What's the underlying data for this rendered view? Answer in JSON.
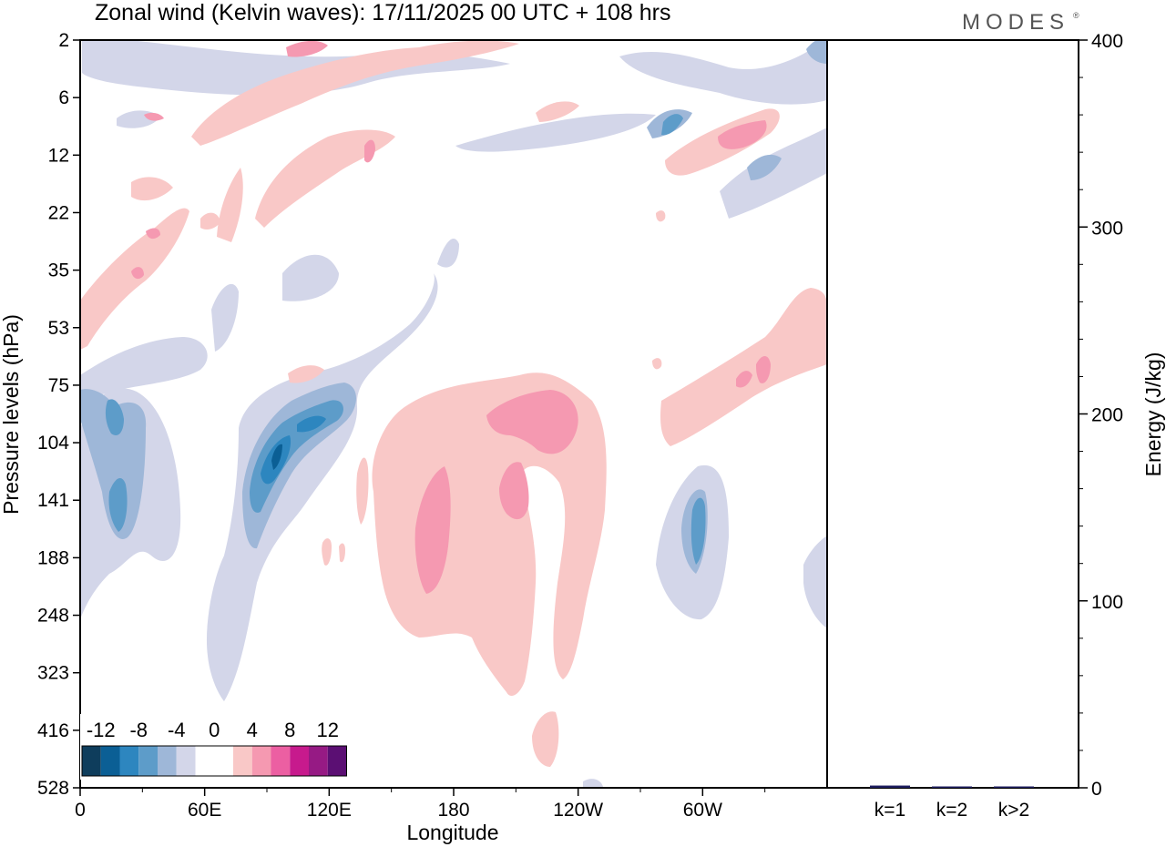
{
  "header": {
    "title": "Zonal wind (Kelvin waves):  17/11/2025  00 UTC  + 108 hrs",
    "brand": "MODES"
  },
  "chart_data": [
    {
      "type": "heatmap",
      "title": "Zonal wind (Kelvin waves):  17/11/2025  00 UTC  + 108 hrs",
      "xlabel": "Longitude",
      "ylabel": "Pressure levels (hPa)",
      "xlim": [
        0,
        360
      ],
      "x_ticks": [
        {
          "label": "0",
          "lon": 0
        },
        {
          "label": "60E",
          "lon": 60
        },
        {
          "label": "120E",
          "lon": 120
        },
        {
          "label": "180",
          "lon": 180
        },
        {
          "label": "120W",
          "lon": 240
        },
        {
          "label": "60W",
          "lon": 300
        }
      ],
      "y_levels": [
        "2",
        "6",
        "12",
        "22",
        "35",
        "53",
        "75",
        "104",
        "141",
        "188",
        "248",
        "323",
        "416",
        "528"
      ],
      "colorbar": {
        "labels": [
          "-12",
          "-8",
          "-4",
          "0",
          "4",
          "8",
          "12"
        ],
        "colors": [
          "#0e3d5c",
          "#0b5f95",
          "#2d86bf",
          "#5d9cc9",
          "#9eb7d8",
          "#d3d6e9",
          "#ffffff",
          "#ffffff",
          "#f9c8c7",
          "#f599b1",
          "#ec5fa2",
          "#c71a8d",
          "#961a84",
          "#5b0f73"
        ]
      },
      "features": [
        {
          "sign": "negative",
          "magnitude": 10,
          "lon": 92,
          "level": "104"
        },
        {
          "sign": "negative",
          "magnitude": 8,
          "lon": 118,
          "level": "90"
        },
        {
          "sign": "negative",
          "magnitude": 6,
          "lon": 17,
          "level": "141"
        },
        {
          "sign": "negative",
          "magnitude": 6,
          "lon": 298,
          "level": "160"
        },
        {
          "sign": "positive",
          "magnitude": 8,
          "lon": 212,
          "level": "90"
        },
        {
          "sign": "positive",
          "magnitude": 8,
          "lon": 172,
          "level": "160"
        },
        {
          "sign": "positive",
          "magnitude": 6,
          "lon": 318,
          "level": "70"
        },
        {
          "sign": "positive",
          "magnitude": 6,
          "lon": 323,
          "level": "12"
        }
      ]
    },
    {
      "type": "bar",
      "ylabel": "Energy (J/kg)",
      "ylim": [
        0,
        400
      ],
      "y_ticks": [
        "0",
        "100",
        "200",
        "300",
        "400"
      ],
      "categories": [
        "k=1",
        "k=2",
        "k>2"
      ],
      "values": [
        1.2,
        0.4,
        0.6
      ]
    }
  ]
}
